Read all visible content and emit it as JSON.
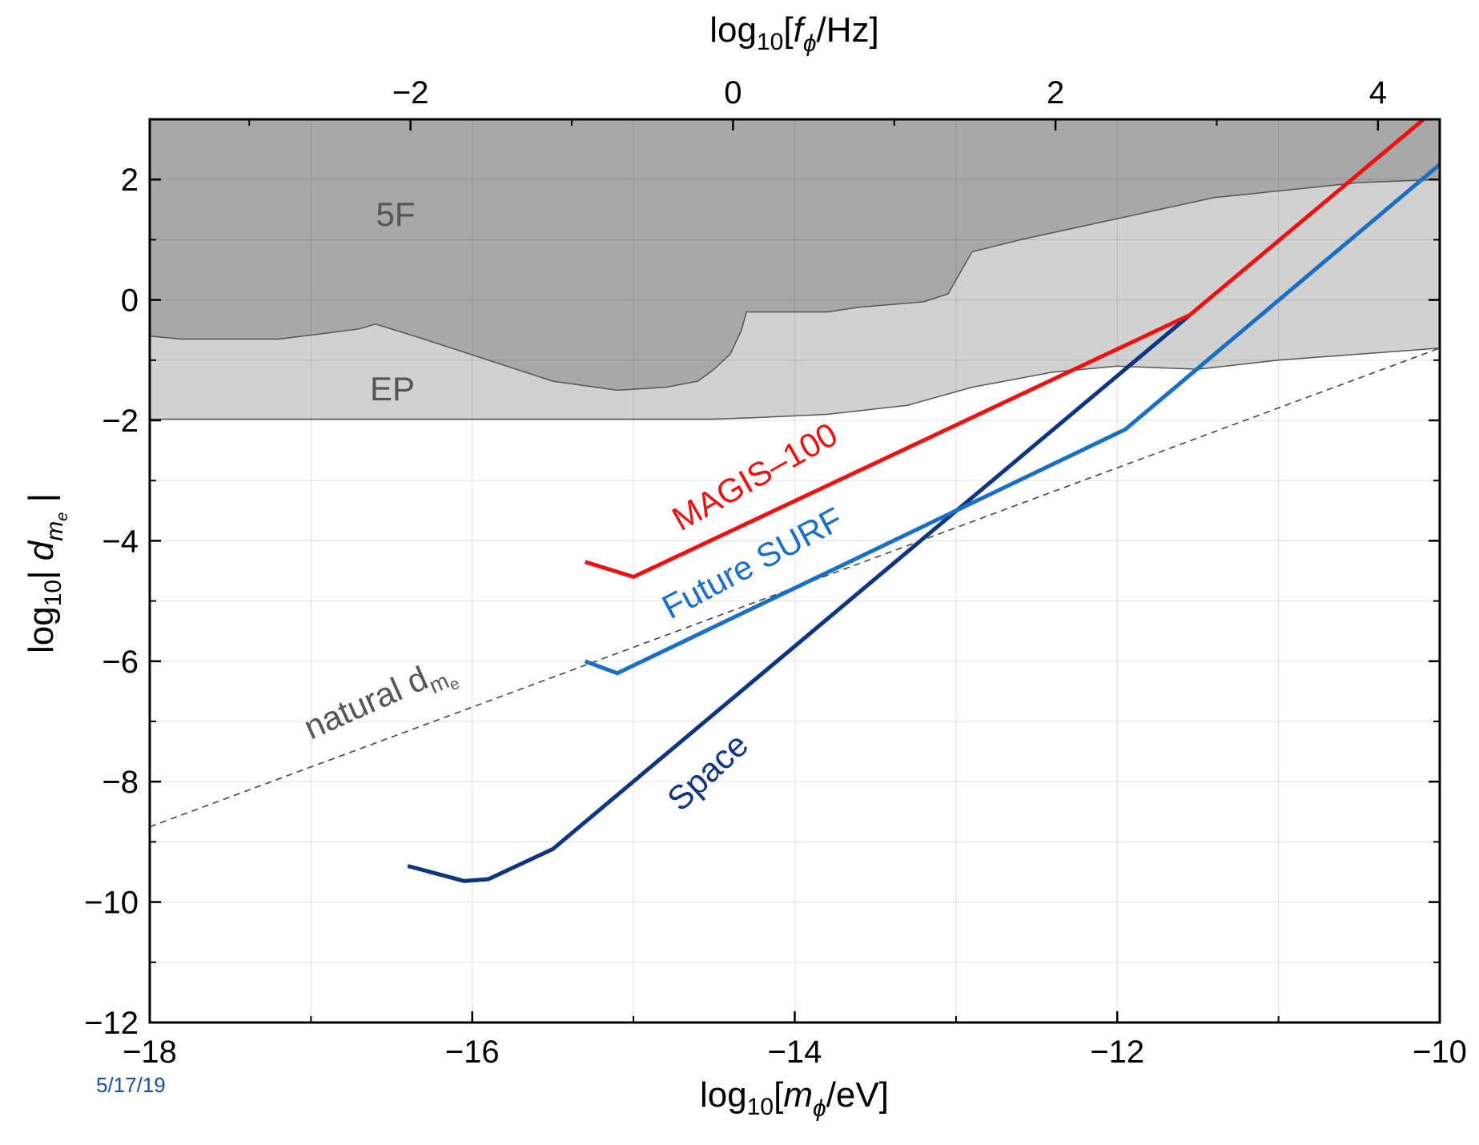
{
  "chart_data": {
    "type": "line",
    "xlabel": {
      "pre": "log",
      "sub": "10",
      "mid": "[",
      "var": "m",
      "varsub": "ϕ",
      "post": "/eV]"
    },
    "x2label": {
      "pre": "log",
      "sub": "10",
      "mid": "[",
      "var": "f",
      "varsub": "ϕ",
      "post": "/Hz]"
    },
    "ylabel": {
      "pre": "log",
      "sub": "10",
      "mid": "| ",
      "var": "d",
      "varsub": "m",
      "varsubsub": "e",
      "post": " |"
    },
    "xlim": [
      -18,
      -10
    ],
    "ylim": [
      -12,
      3
    ],
    "x2lim": [
      -3.617,
      4.383
    ],
    "x_ticks": [
      "−18",
      "−16",
      "−14",
      "−12",
      "−10"
    ],
    "x_tick_values": [
      -18,
      -16,
      -14,
      -12,
      -10
    ],
    "y_ticks": [
      "2",
      "0",
      "−2",
      "−4",
      "−6",
      "−8",
      "−10",
      "−12"
    ],
    "y_tick_values": [
      2,
      0,
      -2,
      -4,
      -6,
      -8,
      -10,
      -12
    ],
    "x2_ticks": [
      "−2",
      "0",
      "2",
      "4"
    ],
    "x2_tick_values": [
      -2,
      0,
      2,
      4
    ],
    "grid": true,
    "date_stamp": "5/17/19",
    "colors": {
      "region_5F": "#a8a8a8",
      "region_EP": "#d1d1d1",
      "magis": "#ee1111",
      "surf": "#1a6fc4",
      "space": "#0f3480",
      "natural": "#444444"
    },
    "regions": [
      {
        "name": "5F",
        "label": "5F",
        "boundary": [
          [
            -18,
            -0.6
          ],
          [
            -17.8,
            -0.65
          ],
          [
            -17.2,
            -0.65
          ],
          [
            -16.9,
            -0.55
          ],
          [
            -16.7,
            -0.48
          ],
          [
            -16.6,
            -0.4
          ],
          [
            -16.3,
            -0.65
          ],
          [
            -15.9,
            -1.0
          ],
          [
            -15.5,
            -1.35
          ],
          [
            -15.1,
            -1.5
          ],
          [
            -14.8,
            -1.45
          ],
          [
            -14.6,
            -1.35
          ],
          [
            -14.5,
            -1.15
          ],
          [
            -14.4,
            -0.9
          ],
          [
            -14.33,
            -0.5
          ],
          [
            -14.3,
            -0.2
          ],
          [
            -13.8,
            -0.2
          ],
          [
            -13.6,
            -0.12
          ],
          [
            -13.2,
            -0.03
          ],
          [
            -13.05,
            0.1
          ],
          [
            -12.9,
            0.8
          ],
          [
            -12.6,
            1.0
          ],
          [
            -12.0,
            1.35
          ],
          [
            -11.4,
            1.7
          ],
          [
            -10.5,
            1.95
          ],
          [
            -10,
            2.0
          ]
        ]
      },
      {
        "name": "EP",
        "label": "EP",
        "boundary": [
          [
            -18,
            -1.98
          ],
          [
            -14.5,
            -1.98
          ],
          [
            -14.2,
            -1.95
          ],
          [
            -13.8,
            -1.9
          ],
          [
            -13.3,
            -1.75
          ],
          [
            -12.9,
            -1.45
          ],
          [
            -12.4,
            -1.2
          ],
          [
            -12.0,
            -1.1
          ],
          [
            -11.5,
            -1.15
          ],
          [
            -11.0,
            -1.0
          ],
          [
            -10.5,
            -0.9
          ],
          [
            -10,
            -0.8
          ]
        ]
      }
    ],
    "series": [
      {
        "name": "MAGIS–100",
        "x": [
          -15.3,
          -15.0,
          -11.55,
          -10.1
        ],
        "y": [
          -4.35,
          -4.6,
          -0.25,
          3.0
        ]
      },
      {
        "name": "Future SURF",
        "x": [
          -15.3,
          -15.1,
          -11.95,
          -10.0
        ],
        "y": [
          -6.0,
          -6.2,
          -2.15,
          2.25
        ]
      },
      {
        "name": "Space",
        "x": [
          -16.4,
          -16.05,
          -15.9,
          -15.5,
          -11.55
        ],
        "y": [
          -9.4,
          -9.65,
          -9.62,
          -9.12,
          -0.25
        ]
      },
      {
        "name": "natural d_me",
        "x": [
          -18,
          -10
        ],
        "y": [
          -8.75,
          -0.8
        ]
      }
    ],
    "annotations": {
      "region_5F": "5F",
      "region_EP": "EP",
      "magis": "MAGIS–100",
      "surf": "Future SURF",
      "space": "Space",
      "natural_pre": "natural d",
      "natural_sub": "m",
      "natural_subsub": "e"
    }
  }
}
